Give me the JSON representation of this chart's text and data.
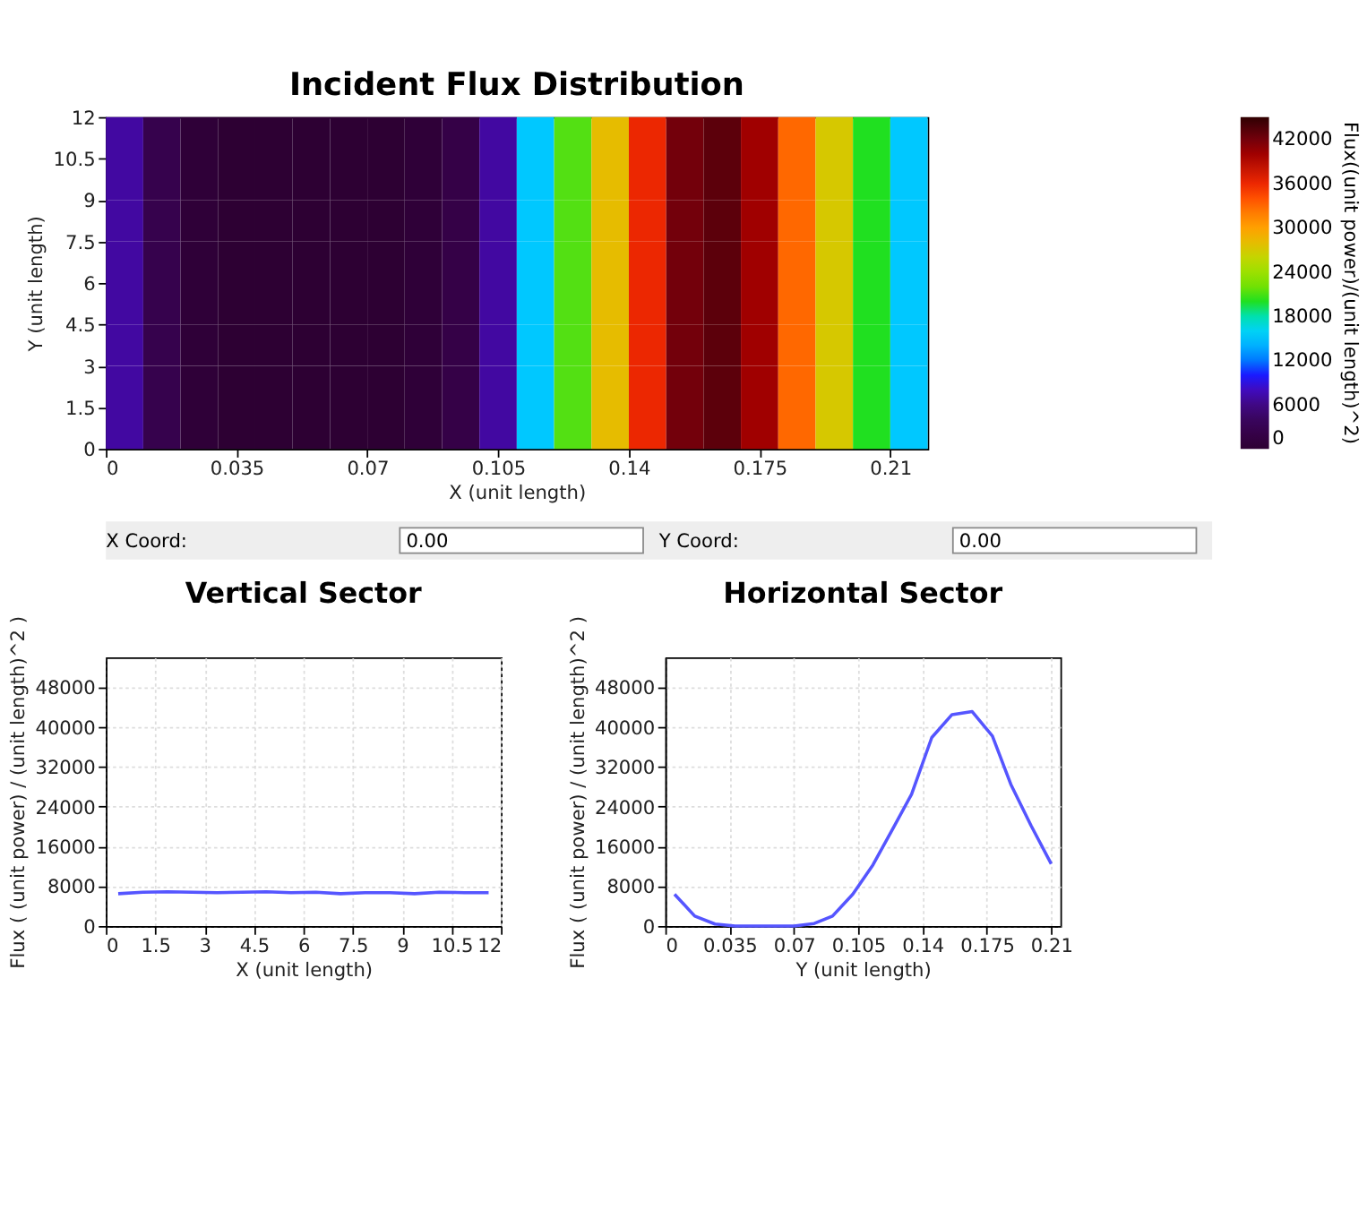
{
  "chart_data": [
    {
      "type": "heatmap",
      "title": "Incident Flux Distribution",
      "xlabel": "X (unit length)",
      "ylabel": "Y (unit length)",
      "clabel": "Flux((unit power)/(unit length)^2)",
      "x": [
        0.005,
        0.015,
        0.025,
        0.035,
        0.045,
        0.055,
        0.065,
        0.075,
        0.085,
        0.095,
        0.105,
        0.115,
        0.125,
        0.135,
        0.145,
        0.155,
        0.165,
        0.175,
        0.185,
        0.195,
        0.205,
        0.215
      ],
      "y": [
        0.75,
        2.25,
        3.75,
        5.25,
        6.75,
        8.25,
        9.75,
        11.25
      ],
      "cells": [
        [
          7000,
          2500,
          500,
          0,
          0,
          0,
          0,
          0,
          500,
          2000,
          7000,
          15000,
          21000,
          28000,
          36000,
          42000,
          43000,
          40000,
          33000,
          27000,
          20000,
          15000
        ],
        [
          7000,
          2500,
          500,
          0,
          0,
          0,
          0,
          0,
          500,
          2000,
          7000,
          15000,
          21000,
          28000,
          36000,
          42000,
          43000,
          40000,
          33000,
          27000,
          20000,
          15000
        ],
        [
          7000,
          2500,
          500,
          0,
          0,
          0,
          0,
          0,
          500,
          2000,
          7000,
          15000,
          21000,
          28000,
          36000,
          42000,
          43000,
          40000,
          33000,
          27000,
          20000,
          15000
        ],
        [
          7000,
          2500,
          500,
          0,
          0,
          0,
          0,
          0,
          500,
          2000,
          7000,
          15000,
          21000,
          28000,
          36000,
          42000,
          43000,
          40000,
          33000,
          27000,
          20000,
          15000
        ],
        [
          7000,
          2500,
          500,
          0,
          0,
          0,
          0,
          0,
          500,
          2000,
          7000,
          15000,
          21000,
          28000,
          36000,
          42000,
          43000,
          40000,
          33000,
          27000,
          20000,
          15000
        ],
        [
          7000,
          2500,
          500,
          0,
          0,
          0,
          0,
          0,
          500,
          2000,
          7000,
          15000,
          21000,
          28000,
          36000,
          42000,
          43000,
          40000,
          33000,
          27000,
          20000,
          15000
        ],
        [
          7000,
          2500,
          500,
          0,
          0,
          0,
          0,
          0,
          500,
          2000,
          7000,
          15000,
          21000,
          28000,
          36000,
          42000,
          43000,
          40000,
          33000,
          27000,
          20000,
          15000
        ],
        [
          7000,
          2500,
          500,
          0,
          0,
          0,
          0,
          0,
          500,
          2000,
          7000,
          15000,
          21000,
          28000,
          36000,
          42000,
          43000,
          40000,
          33000,
          27000,
          20000,
          15000
        ]
      ],
      "xlim": [
        0,
        0.22
      ],
      "xticks": [
        0,
        0.035,
        0.07,
        0.105,
        0.14,
        0.175,
        0.21
      ],
      "ylim": [
        0,
        12
      ],
      "yticks": [
        0,
        1.5,
        3,
        4.5,
        6,
        7.5,
        9,
        10.5,
        12
      ],
      "clim": [
        0,
        45000
      ],
      "cticks": [
        0,
        6000,
        12000,
        18000,
        24000,
        30000,
        36000,
        42000
      ]
    },
    {
      "type": "other",
      "annotations": [
        "X Coord:",
        "0.00",
        "Y Coord:",
        "0.00"
      ]
    },
    {
      "type": "line",
      "title": "Vertical Sector",
      "xlabel": "X (unit length)",
      "ylabel": "Flux ( (unit power) / (unit length)^2 )",
      "x": [
        0.375,
        1.125,
        1.875,
        2.625,
        3.375,
        4.125,
        4.875,
        5.625,
        6.375,
        7.125,
        7.875,
        8.625,
        9.375,
        10.125,
        10.875,
        11.625
      ],
      "series": [
        {
          "color": "#5555ff",
          "values": [
            6500,
            6800,
            6900,
            6800,
            6700,
            6800,
            6900,
            6700,
            6800,
            6500,
            6700,
            6700,
            6500,
            6800,
            6700,
            6700
          ]
        }
      ],
      "xlim": [
        0,
        12
      ],
      "xticks": [
        0,
        1.5,
        3,
        4.5,
        6,
        7.5,
        9,
        10.5,
        12
      ],
      "ylim": [
        0,
        54000
      ],
      "yticks": [
        0,
        8000,
        16000,
        24000,
        32000,
        40000,
        48000
      ],
      "grid": true,
      "marker": "none"
    },
    {
      "type": "line",
      "title": "Horizontal Sector",
      "xlabel": "Y (unit length)",
      "ylabel": "Flux ( (unit power) / (unit length)^2 )",
      "x": [
        0.005,
        0.016,
        0.027,
        0.038,
        0.048,
        0.059,
        0.07,
        0.081,
        0.091,
        0.102,
        0.113,
        0.124,
        0.134,
        0.145,
        0.156,
        0.167,
        0.178,
        0.188,
        0.199,
        0.21
      ],
      "series": [
        {
          "color": "#5555ff",
          "values": [
            6400,
            2000,
            400,
            0,
            0,
            0,
            0,
            500,
            2000,
            6400,
            12300,
            19700,
            26500,
            37900,
            42500,
            43100,
            38200,
            28500,
            20200,
            12500
          ]
        }
      ],
      "xlim": [
        0,
        0.215
      ],
      "xticks": [
        0,
        0.035,
        0.07,
        0.105,
        0.14,
        0.175,
        0.21
      ],
      "ylim": [
        0,
        54000
      ],
      "yticks": [
        0,
        8000,
        16000,
        24000,
        32000,
        40000,
        48000
      ],
      "grid": true,
      "marker": "none"
    }
  ]
}
